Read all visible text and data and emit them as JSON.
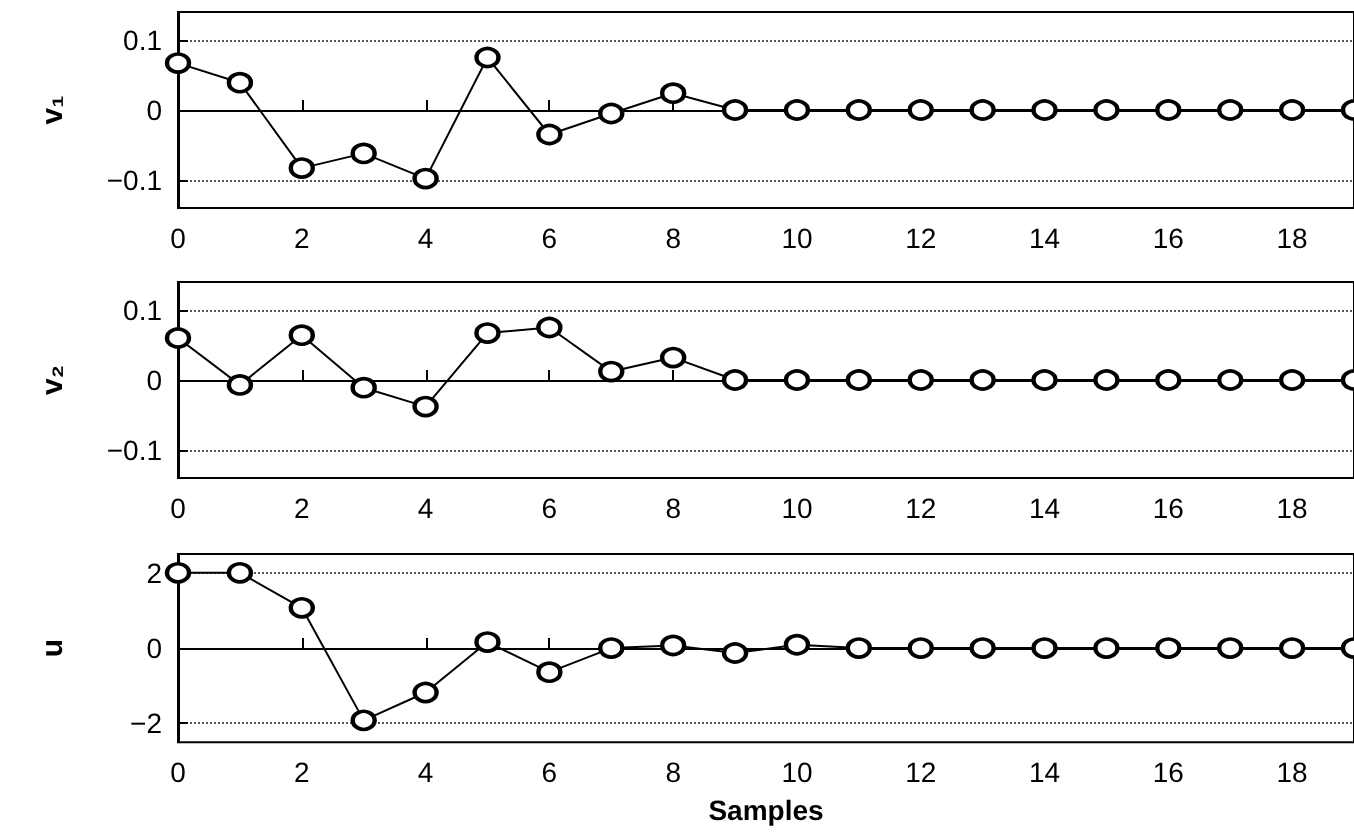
{
  "chart_data": [
    {
      "type": "line",
      "ylabel": "v₁",
      "x": [
        0,
        1,
        2,
        3,
        4,
        5,
        6,
        7,
        8,
        9,
        10,
        11,
        12,
        13,
        14,
        15,
        16,
        17,
        18,
        19
      ],
      "values": [
        0.067,
        0.039,
        -0.083,
        -0.062,
        -0.098,
        0.075,
        -0.035,
        -0.005,
        0.024,
        0,
        0,
        0,
        0,
        0,
        0,
        0,
        0,
        0,
        0,
        0
      ],
      "color": "#000000",
      "xlim": [
        0,
        19
      ],
      "xticks": [
        0,
        2,
        4,
        6,
        8,
        10,
        12,
        14,
        16,
        18
      ],
      "ylim": [
        -0.14,
        0.14
      ],
      "yticks": [
        -0.1,
        0,
        0.1
      ],
      "grid": "y",
      "marker": "circle",
      "line_style": "solid"
    },
    {
      "type": "line",
      "ylabel": "v₂",
      "x": [
        0,
        1,
        2,
        3,
        4,
        5,
        6,
        7,
        8,
        9,
        10,
        11,
        12,
        13,
        14,
        15,
        16,
        17,
        18,
        19
      ],
      "values": [
        0.06,
        -0.007,
        0.064,
        -0.011,
        -0.038,
        0.067,
        0.075,
        0.012,
        0.032,
        0,
        0,
        0,
        0,
        0,
        0,
        0,
        0,
        0,
        0,
        0
      ],
      "color": "#000000",
      "xlim": [
        0,
        19
      ],
      "xticks": [
        0,
        2,
        4,
        6,
        8,
        10,
        12,
        14,
        16,
        18
      ],
      "ylim": [
        -0.14,
        0.14
      ],
      "yticks": [
        -0.1,
        0,
        0.1
      ],
      "grid": "y",
      "marker": "circle",
      "line_style": "solid"
    },
    {
      "type": "line",
      "ylabel": "u",
      "xlabel": "Samples",
      "x": [
        0,
        1,
        2,
        3,
        4,
        5,
        6,
        7,
        8,
        9,
        10,
        11,
        12,
        13,
        14,
        15,
        16,
        17,
        18,
        19
      ],
      "values": [
        2,
        2,
        1.07,
        -1.92,
        -1.18,
        0.16,
        -0.64,
        0,
        0.07,
        -0.13,
        0.09,
        0,
        0,
        0,
        0,
        0,
        0,
        0,
        0,
        0
      ],
      "color": "#000000",
      "xlim": [
        0,
        19
      ],
      "xticks": [
        0,
        2,
        4,
        6,
        8,
        10,
        12,
        14,
        16,
        18
      ],
      "ylim": [
        -2.5,
        2.5
      ],
      "yticks": [
        -2,
        0,
        2
      ],
      "grid": "y",
      "marker": "circle",
      "line_style": "solid"
    }
  ]
}
